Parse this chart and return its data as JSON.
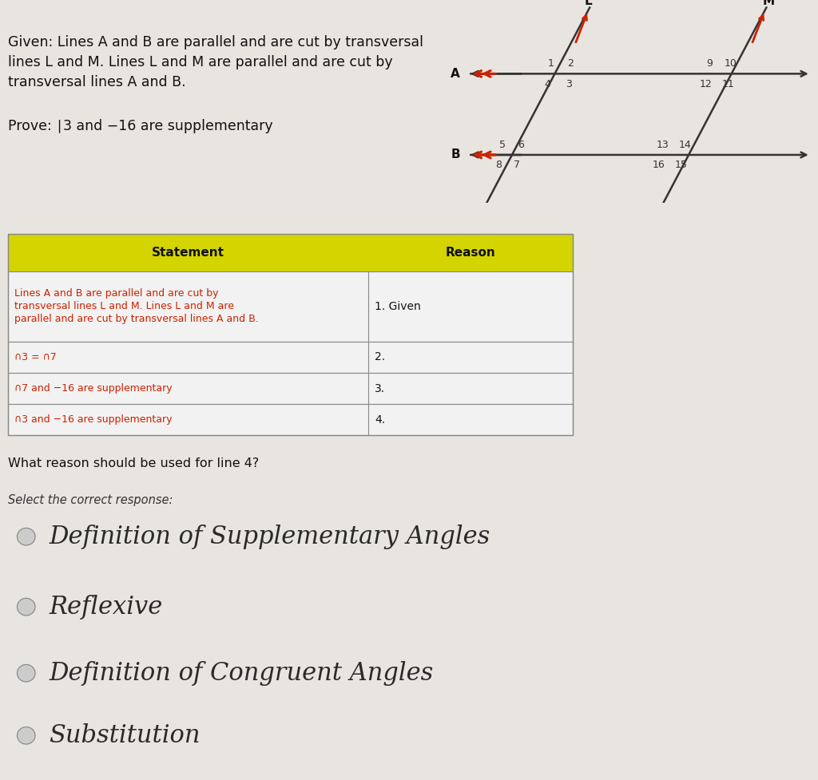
{
  "bg_color": "#e8e4e0",
  "given_text": "Given: Lines A and B are parallel and are cut by transversal\nlines L and M. Lines L and M are parallel and are cut by\ntransversal lines A and B.",
  "prove_text": "Prove: ∣3 and −16 are supplementary",
  "table_header": [
    "Statement",
    "Reason"
  ],
  "table_rows": [
    [
      "Lines A and B are parallel and are cut by\ntransversal lines L and M. Lines L and M are\nparallel and are cut by transversal lines A and B.",
      "1. Given"
    ],
    [
      "∩3 = ∩7",
      "2."
    ],
    [
      "∩7 and −16 are supplementary",
      "3."
    ],
    [
      "∩3 and −16 are supplementary",
      "4."
    ]
  ],
  "table_header_bg": "#d4d400",
  "table_text_color_red": "#cc2200",
  "table_text_color_black": "#222222",
  "question_text": "What reason should be used for line 4?",
  "select_text": "Select the correct response:",
  "options": [
    "Definition of Supplementary Angles",
    "Reflexive",
    "Definition of Congruent Angles",
    "Substitution"
  ]
}
